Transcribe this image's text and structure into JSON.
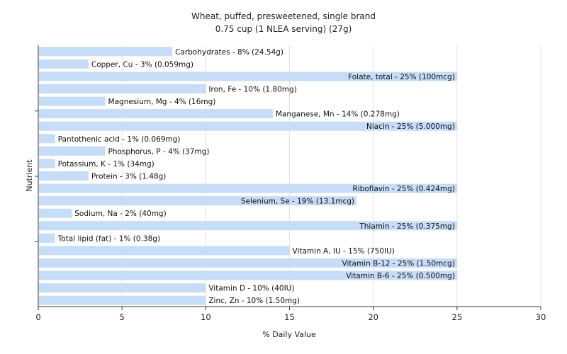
{
  "chart_data": {
    "type": "bar",
    "orientation": "horizontal",
    "title": "Wheat, puffed, presweetened, single brand",
    "subtitle": "0.75 cup (1 NLEA serving) (27g)",
    "xlabel": "% Daily Value",
    "ylabel": "Nutrient",
    "xlim": [
      0,
      30
    ],
    "xticks": [
      0,
      5,
      10,
      15,
      20,
      25,
      30
    ],
    "grid": true,
    "bar_color": "#c6dcf7",
    "categories": [
      "Carbohydrates",
      "Copper, Cu",
      "Folate, total",
      "Iron, Fe",
      "Magnesium, Mg",
      "Manganese, Mn",
      "Niacin",
      "Pantothenic acid",
      "Phosphorus, P",
      "Potassium, K",
      "Protein",
      "Riboflavin",
      "Selenium, Se",
      "Sodium, Na",
      "Thiamin",
      "Total lipid (fat)",
      "Vitamin A, IU",
      "Vitamin B-12",
      "Vitamin B-6",
      "Vitamin D",
      "Zinc, Zn"
    ],
    "values": [
      8,
      3,
      25,
      10,
      4,
      14,
      25,
      1,
      4,
      1,
      3,
      25,
      19,
      2,
      25,
      1,
      15,
      25,
      25,
      10,
      10
    ],
    "labels": [
      "Carbohydrates - 8% (24.54g)",
      "Copper, Cu - 3% (0.059mg)",
      "Folate, total - 25% (100mcg)",
      "Iron, Fe - 10% (1.80mg)",
      "Magnesium, Mg - 4% (16mg)",
      "Manganese, Mn - 14% (0.278mg)",
      "Niacin - 25% (5.000mg)",
      "Pantothenic acid - 1% (0.069mg)",
      "Phosphorus, P - 4% (37mg)",
      "Potassium, K - 1% (34mg)",
      "Protein - 3% (1.48g)",
      "Riboflavin - 25% (0.424mg)",
      "Selenium, Se - 19% (13.1mcg)",
      "Sodium, Na - 2% (40mg)",
      "Thiamin - 25% (0.375mg)",
      "Total lipid (fat) - 1% (0.38g)",
      "Vitamin A, IU - 15% (750IU)",
      "Vitamin B-12 - 25% (1.50mcg)",
      "Vitamin B-6 - 25% (0.500mg)",
      "Vitamin D - 10% (40IU)",
      "Zinc, Zn - 10% (1.50mg)"
    ]
  }
}
